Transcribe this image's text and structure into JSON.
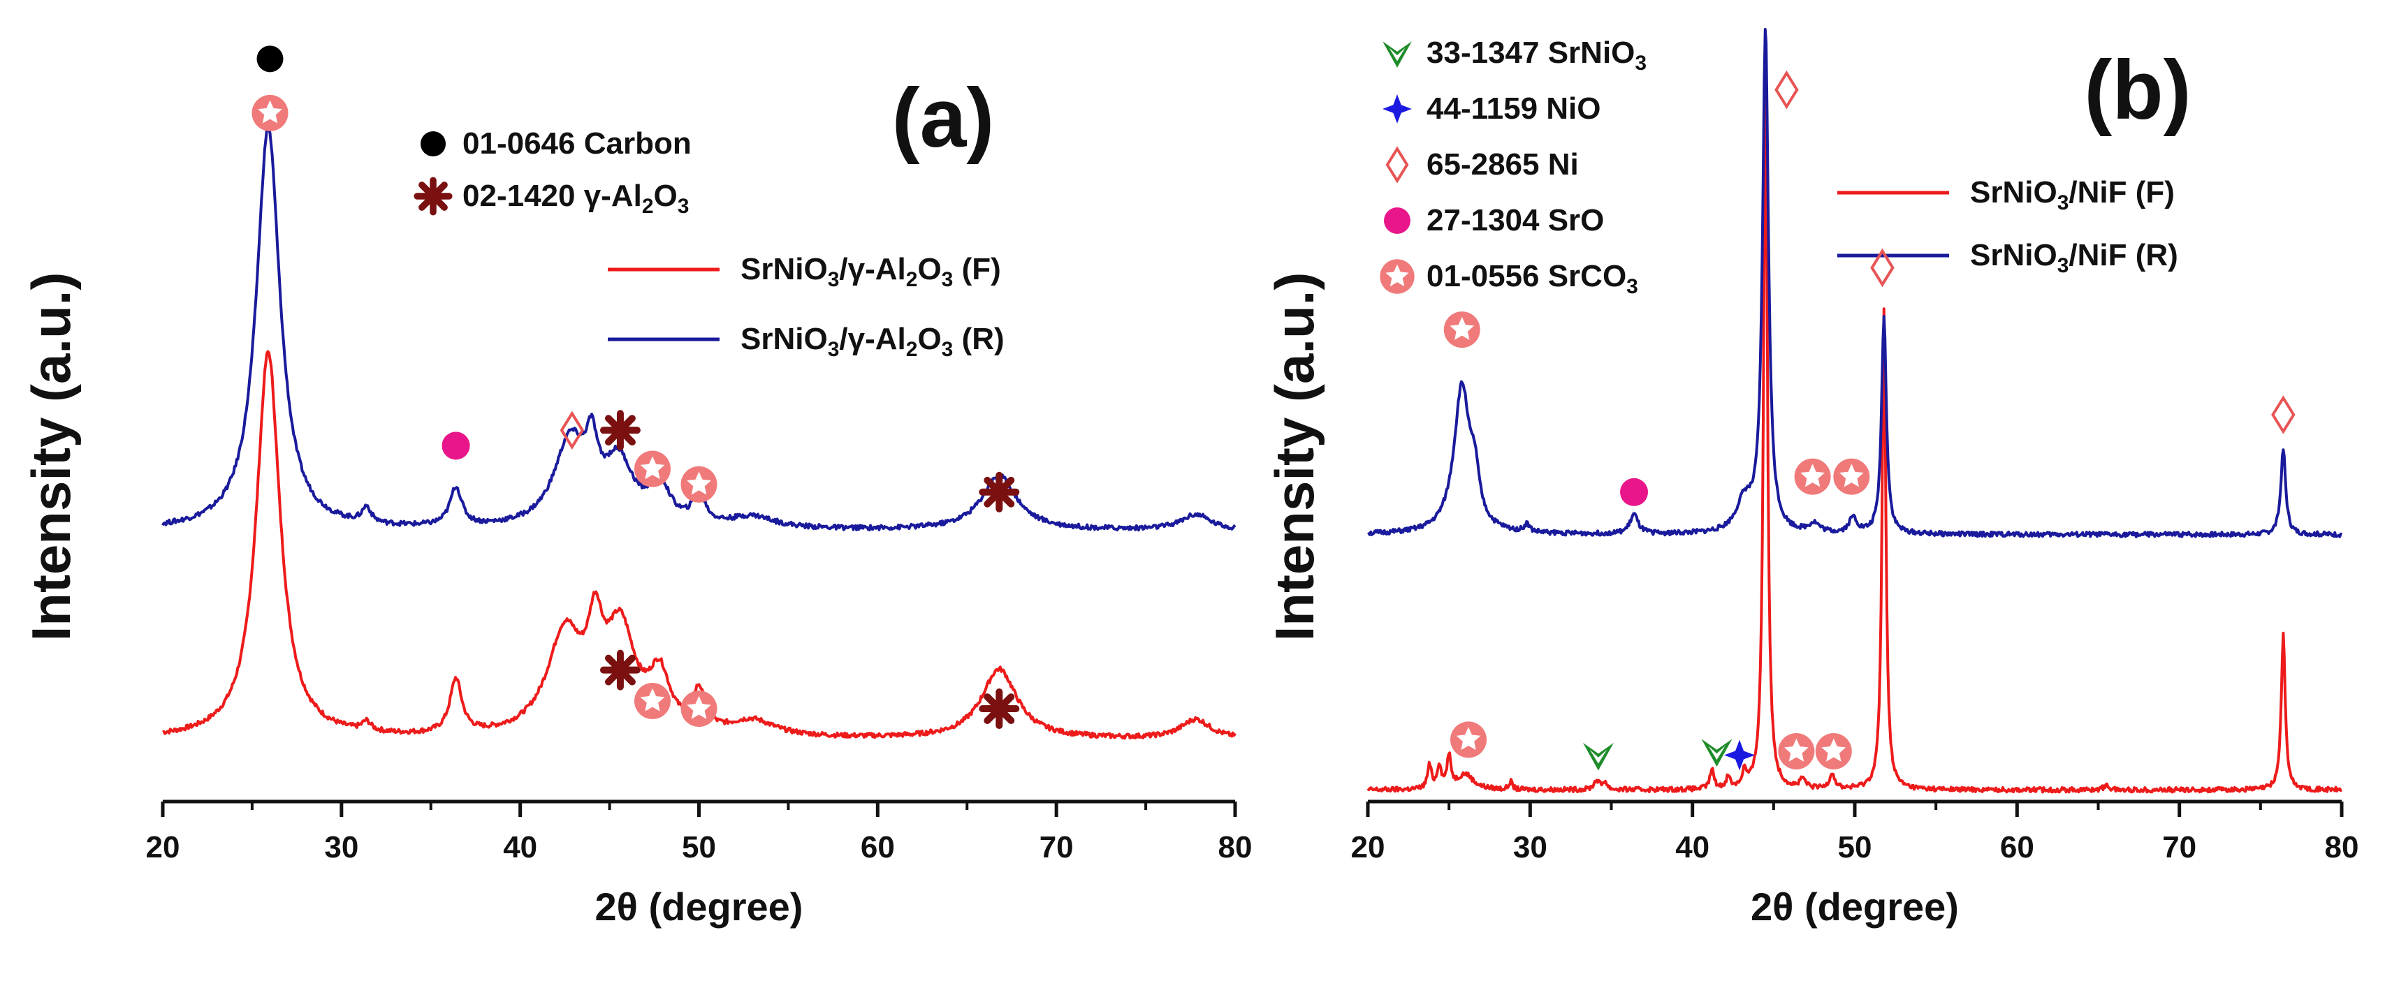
{
  "colors": {
    "fresh": "#ee1b1b",
    "reduced": "#1a1a9c",
    "carbon": "#000000",
    "al2o3": "#7a1010",
    "sro": "#e8168a",
    "ni": "#e85454",
    "nio": "#1a1ae0",
    "srnio3": "#1f8c2a",
    "srco3_fill": "#f07a7a",
    "axis": "#111111"
  },
  "chart_data": [
    {
      "type": "line",
      "panel": "(a)",
      "xlabel": "2θ (degree)",
      "ylabel": "Intensity (a.u.)",
      "xlim": [
        20,
        80
      ],
      "ylim": [
        0,
        1
      ],
      "xticks": [
        20,
        30,
        40,
        50,
        60,
        70,
        80
      ],
      "grid": false,
      "legend_position": "top-right",
      "phase_legend": [
        {
          "marker": "carbon",
          "ref": "01-0646",
          "text": "Carbon"
        },
        {
          "marker": "al2o3",
          "ref": "02-1420",
          "text": "γ-Al",
          "sub1": "2",
          "text2": "O",
          "sub2": "3"
        }
      ],
      "series": [
        {
          "name": "SrNiO3/γ-Al2O3 (F)",
          "label_parts": [
            "SrNiO",
            "3",
            "/γ-Al",
            "2",
            "O",
            "3",
            " (F)"
          ],
          "color_key": "fresh",
          "baseline": 0.08,
          "peaks": [
            [
              25.9,
              0.5,
              0.8
            ],
            [
              31.4,
              0.012,
              0.3
            ],
            [
              36.4,
              0.07,
              0.4
            ],
            [
              42.5,
              0.13,
              1.2
            ],
            [
              44.2,
              0.1,
              0.5
            ],
            [
              45.6,
              0.13,
              1.0
            ],
            [
              47.8,
              0.07,
              0.7
            ],
            [
              50.0,
              0.05,
              0.4
            ],
            [
              53.0,
              0.02,
              1.5
            ],
            [
              66.8,
              0.09,
              1.2
            ],
            [
              77.8,
              0.025,
              1.0
            ]
          ]
        },
        {
          "name": "SrNiO3/γ-Al2O3 (R)",
          "label_parts": [
            "SrNiO",
            "3",
            "/γ-Al",
            "2",
            "O",
            "3",
            " (R)"
          ],
          "color_key": "reduced",
          "baseline": 0.35,
          "peaks": [
            [
              25.9,
              0.52,
              0.8
            ],
            [
              31.4,
              0.02,
              0.3
            ],
            [
              36.4,
              0.05,
              0.4
            ],
            [
              42.8,
              0.11,
              1.1
            ],
            [
              44.0,
              0.07,
              0.4
            ],
            [
              45.5,
              0.08,
              1.0
            ],
            [
              47.8,
              0.05,
              0.7
            ],
            [
              50.0,
              0.04,
              0.4
            ],
            [
              53.0,
              0.015,
              1.5
            ],
            [
              66.8,
              0.07,
              1.2
            ],
            [
              77.8,
              0.02,
              1.0
            ]
          ]
        }
      ],
      "annotations": [
        {
          "marker": "carbon",
          "x": 26.0,
          "y": 0.96
        },
        {
          "marker": "srco3",
          "x": 26.0,
          "y": 0.89
        },
        {
          "marker": "sro",
          "x": 36.4,
          "y": 0.46
        },
        {
          "marker": "ni",
          "x": 42.9,
          "y": 0.48
        },
        {
          "marker": "al2o3",
          "x": 45.6,
          "y": 0.48
        },
        {
          "marker": "srco3",
          "x": 47.4,
          "y": 0.43
        },
        {
          "marker": "srco3",
          "x": 50.0,
          "y": 0.41
        },
        {
          "marker": "al2o3",
          "x": 66.8,
          "y": 0.4
        },
        {
          "marker": "al2o3",
          "x": 45.6,
          "y": 0.17
        },
        {
          "marker": "srco3",
          "x": 47.4,
          "y": 0.13
        },
        {
          "marker": "srco3",
          "x": 50.0,
          "y": 0.12
        },
        {
          "marker": "al2o3",
          "x": 66.8,
          "y": 0.12
        }
      ]
    },
    {
      "type": "line",
      "panel": "(b)",
      "xlabel": "2θ (degree)",
      "ylabel": "Intensity (a.u.)",
      "xlim": [
        20,
        80
      ],
      "ylim": [
        0,
        1
      ],
      "xticks": [
        20,
        30,
        40,
        50,
        60,
        70,
        80
      ],
      "grid": false,
      "legend_position": "top-right",
      "phase_legend": [
        {
          "marker": "srnio3",
          "ref": "33-1347",
          "text": "SrNiO",
          "sub1": "3"
        },
        {
          "marker": "nio",
          "ref": "44-1159",
          "text": "NiO"
        },
        {
          "marker": "ni",
          "ref": "65-2865",
          "text": "Ni"
        },
        {
          "marker": "sro",
          "ref": "27-1304",
          "text": "SrO"
        },
        {
          "marker": "srco3",
          "ref": "01-0556",
          "text": "SrCO",
          "sub1": "3"
        }
      ],
      "series": [
        {
          "name": "SrNiO3/NiF (F)",
          "label_parts": [
            "SrNiO",
            "3",
            "/NiF (F)"
          ],
          "color_key": "fresh",
          "baseline": 0.015,
          "peaks": [
            [
              23.8,
              0.03,
              0.15
            ],
            [
              24.4,
              0.03,
              0.15
            ],
            [
              25.0,
              0.04,
              0.15
            ],
            [
              26.0,
              0.02,
              0.6
            ],
            [
              28.8,
              0.01,
              0.12
            ],
            [
              34.1,
              0.012,
              0.2
            ],
            [
              34.6,
              0.01,
              0.15
            ],
            [
              41.2,
              0.025,
              0.15
            ],
            [
              42.2,
              0.015,
              0.15
            ],
            [
              43.2,
              0.02,
              0.15
            ],
            [
              44.5,
              0.96,
              0.14
            ],
            [
              46.8,
              0.012,
              0.2
            ],
            [
              48.6,
              0.02,
              0.2
            ],
            [
              51.8,
              0.62,
              0.14
            ],
            [
              65.5,
              0.006,
              0.2
            ],
            [
              76.4,
              0.2,
              0.15
            ]
          ]
        },
        {
          "name": "SrNiO3/NiF (R)",
          "label_parts": [
            "SrNiO",
            "3",
            "/NiF (R)"
          ],
          "color_key": "reduced",
          "baseline": 0.345,
          "peaks": [
            [
              25.8,
              0.19,
              0.6
            ],
            [
              26.6,
              0.05,
              0.3
            ],
            [
              29.8,
              0.01,
              0.2
            ],
            [
              36.4,
              0.025,
              0.3
            ],
            [
              43.2,
              0.04,
              0.6
            ],
            [
              44.5,
              0.65,
              0.22
            ],
            [
              47.5,
              0.012,
              0.4
            ],
            [
              49.9,
              0.02,
              0.3
            ],
            [
              51.8,
              0.28,
              0.18
            ],
            [
              76.4,
              0.11,
              0.18
            ]
          ]
        }
      ],
      "annotations": [
        {
          "marker": "ni",
          "x": 45.8,
          "y": 0.92
        },
        {
          "marker": "ni",
          "x": 51.7,
          "y": 0.69
        },
        {
          "marker": "ni",
          "x": 76.4,
          "y": 0.5
        },
        {
          "marker": "srco3",
          "x": 25.8,
          "y": 0.61
        },
        {
          "marker": "sro",
          "x": 36.4,
          "y": 0.4
        },
        {
          "marker": "srco3",
          "x": 47.4,
          "y": 0.42
        },
        {
          "marker": "srco3",
          "x": 49.8,
          "y": 0.42
        },
        {
          "marker": "srco3",
          "x": 26.2,
          "y": 0.08
        },
        {
          "marker": "srnio3",
          "x": 34.2,
          "y": 0.06
        },
        {
          "marker": "srnio3",
          "x": 41.5,
          "y": 0.065
        },
        {
          "marker": "nio",
          "x": 42.9,
          "y": 0.06
        },
        {
          "marker": "srco3",
          "x": 46.4,
          "y": 0.065
        },
        {
          "marker": "srco3",
          "x": 48.7,
          "y": 0.065
        }
      ]
    }
  ]
}
